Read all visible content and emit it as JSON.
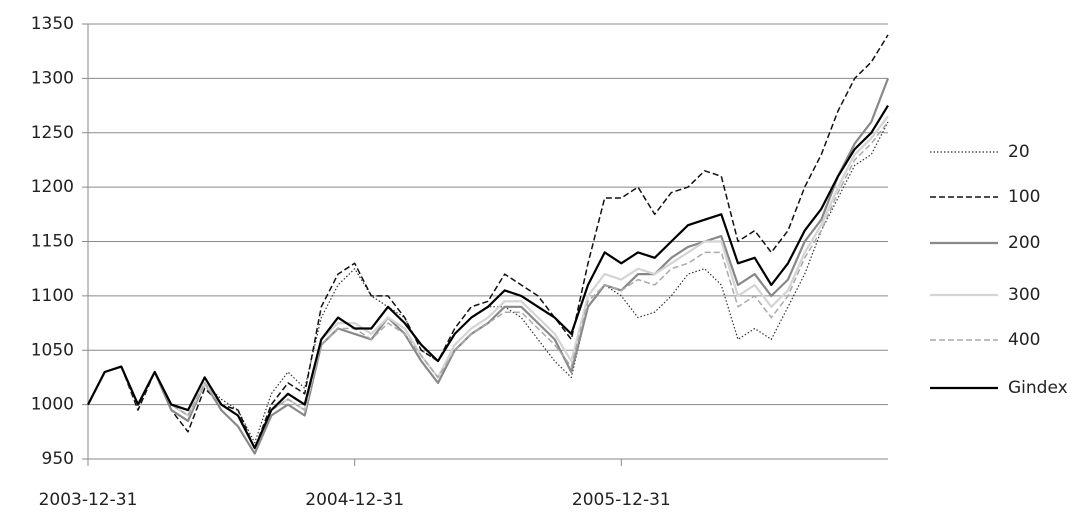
{
  "chart_data": {
    "type": "line",
    "categories": [
      "2003-12-31",
      null,
      null,
      null,
      null,
      null,
      null,
      null,
      null,
      null,
      null,
      null,
      null,
      null,
      null,
      null,
      "2004-12-31",
      null,
      null,
      null,
      null,
      null,
      null,
      null,
      null,
      null,
      null,
      null,
      null,
      null,
      null,
      null,
      "2005-12-31",
      null,
      null,
      null,
      null,
      null,
      null,
      null,
      null,
      null,
      null,
      null,
      null,
      null,
      null,
      null,
      null
    ],
    "ylim": [
      950,
      1350
    ],
    "yticks": [
      950,
      1000,
      1050,
      1100,
      1150,
      1200,
      1250,
      1300,
      1350
    ],
    "grid": true,
    "series": [
      {
        "name": "20",
        "color": "#333333",
        "dash": "dotted",
        "width": 1.2,
        "values": [
          1000,
          1030,
          1035,
          1000,
          1030,
          1000,
          990,
          1020,
          1005,
          995,
          965,
          1010,
          1030,
          1015,
          1080,
          1110,
          1125,
          1100,
          1090,
          1080,
          1050,
          1040,
          1065,
          1080,
          1090,
          1090,
          1080,
          1060,
          1040,
          1025,
          1090,
          1110,
          1100,
          1080,
          1085,
          1100,
          1120,
          1125,
          1110,
          1060,
          1070,
          1060,
          1090,
          1120,
          1160,
          1190,
          1220,
          1230,
          1260
        ]
      },
      {
        "name": "100",
        "color": "#111111",
        "dash": "dashed",
        "width": 1.5,
        "values": [
          1000,
          1030,
          1035,
          995,
          1030,
          995,
          975,
          1015,
          1000,
          995,
          960,
          1000,
          1020,
          1010,
          1090,
          1120,
          1130,
          1100,
          1100,
          1080,
          1050,
          1040,
          1070,
          1090,
          1095,
          1120,
          1110,
          1100,
          1080,
          1060,
          1130,
          1190,
          1190,
          1200,
          1175,
          1195,
          1200,
          1215,
          1210,
          1150,
          1160,
          1140,
          1160,
          1200,
          1230,
          1270,
          1300,
          1315,
          1340
        ]
      },
      {
        "name": "200",
        "color": "#888888",
        "dash": "solid",
        "width": 2.2,
        "values": [
          1000,
          1030,
          1035,
          1000,
          1030,
          995,
          985,
          1020,
          995,
          980,
          955,
          990,
          1000,
          990,
          1055,
          1070,
          1065,
          1060,
          1080,
          1065,
          1040,
          1020,
          1050,
          1065,
          1075,
          1090,
          1090,
          1075,
          1060,
          1030,
          1090,
          1110,
          1105,
          1120,
          1120,
          1135,
          1145,
          1150,
          1155,
          1110,
          1120,
          1100,
          1115,
          1150,
          1170,
          1210,
          1240,
          1260,
          1300
        ]
      },
      {
        "name": "300",
        "color": "#d4d4d4",
        "dash": "solid",
        "width": 2.2,
        "values": [
          1000,
          1030,
          1035,
          1000,
          1030,
          1000,
          990,
          1020,
          1000,
          990,
          960,
          995,
          1005,
          995,
          1060,
          1075,
          1075,
          1065,
          1080,
          1070,
          1045,
          1025,
          1055,
          1070,
          1080,
          1095,
          1095,
          1080,
          1065,
          1040,
          1100,
          1120,
          1115,
          1125,
          1120,
          1130,
          1140,
          1150,
          1150,
          1100,
          1110,
          1090,
          1105,
          1140,
          1165,
          1200,
          1230,
          1245,
          1265
        ]
      },
      {
        "name": "400",
        "color": "#aaaaaa",
        "dash": "dashed",
        "width": 1.5,
        "values": [
          1000,
          1030,
          1035,
          1000,
          1030,
          1000,
          990,
          1020,
          1000,
          990,
          960,
          995,
          1005,
          995,
          1055,
          1070,
          1070,
          1060,
          1075,
          1065,
          1045,
          1025,
          1050,
          1065,
          1075,
          1085,
          1085,
          1070,
          1055,
          1035,
          1095,
          1110,
          1105,
          1115,
          1110,
          1125,
          1130,
          1140,
          1140,
          1090,
          1100,
          1080,
          1100,
          1135,
          1160,
          1195,
          1225,
          1240,
          1260
        ]
      },
      {
        "name": "Gindex",
        "color": "#000000",
        "dash": "solid",
        "width": 2.2,
        "values": [
          1000,
          1030,
          1035,
          1000,
          1030,
          1000,
          995,
          1025,
          1000,
          990,
          960,
          995,
          1010,
          1000,
          1060,
          1080,
          1070,
          1070,
          1090,
          1075,
          1055,
          1040,
          1065,
          1080,
          1090,
          1105,
          1100,
          1090,
          1080,
          1065,
          1110,
          1140,
          1130,
          1140,
          1135,
          1150,
          1165,
          1170,
          1175,
          1130,
          1135,
          1110,
          1130,
          1160,
          1180,
          1210,
          1235,
          1250,
          1275
        ]
      }
    ]
  }
}
